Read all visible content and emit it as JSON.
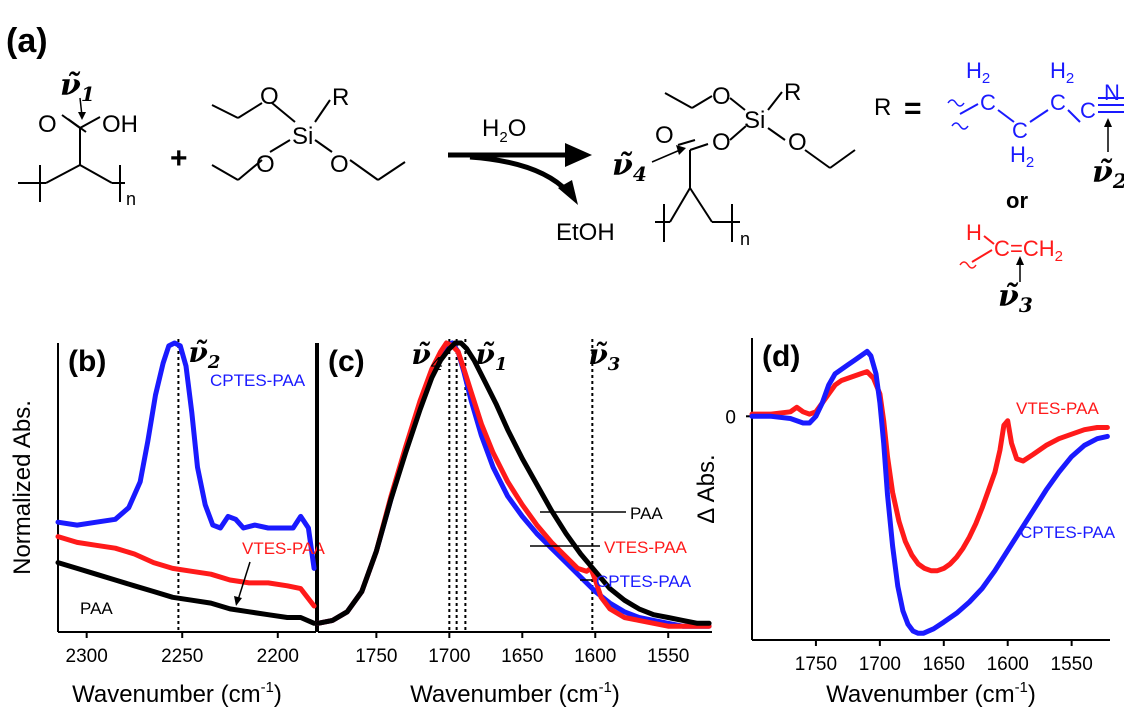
{
  "panel_a": {
    "label": "(a)",
    "reagent_oh": "OH",
    "reagent_o_carbonyl": "O",
    "subscript_n": "n",
    "plus": "+",
    "silane_si": "Si",
    "silane_r": "R",
    "silane_o": "O",
    "arrow_reagent": "H",
    "arrow_reagent_sub": "2",
    "arrow_reagent_tail": "O",
    "byproduct": "EtOH",
    "product_si": "Si",
    "product_r": "R",
    "product_o": "O",
    "r_def": "R",
    "equals": "=",
    "cptes_h2": "H",
    "cptes_h2_sub": "2",
    "cptes_c": "C",
    "cptes_n": "N",
    "or_label": "or",
    "vtes_h": "H",
    "vtes_c": "C",
    "vtes_ch2": "=CH",
    "vtes_ch2_sub": "2",
    "nu_symbol": "ν̃",
    "nu_1": "1",
    "nu_2": "2",
    "nu_3": "3",
    "nu_4": "4"
  },
  "colors": {
    "cptes": "#1a1aff",
    "vtes": "#ff1a1a",
    "paa": "#000000"
  },
  "chart_data": [
    {
      "type": "line",
      "panel": "(b)",
      "xlabel": "Wavenumber (cm",
      "xlabel_sup": "-1",
      "xlabel_tail": ")",
      "ylabel": "Normalized Abs.",
      "xlim": [
        2315,
        2180
      ],
      "ylim": [
        0,
        1
      ],
      "x_reversed": true,
      "xticks": [
        2300,
        2250,
        2200
      ],
      "marker": {
        "x": 2252,
        "label_sub": "2"
      },
      "series": [
        {
          "name": "CPTES-PAA",
          "color": "#1a1aff",
          "x": [
            2315,
            2305,
            2295,
            2285,
            2278,
            2272,
            2268,
            2264,
            2260,
            2257,
            2254,
            2251,
            2248,
            2245,
            2242,
            2238,
            2234,
            2230,
            2226,
            2222,
            2218,
            2212,
            2205,
            2198,
            2192,
            2188,
            2184,
            2181
          ],
          "y": [
            0.38,
            0.37,
            0.38,
            0.39,
            0.43,
            0.52,
            0.66,
            0.82,
            0.93,
            0.99,
            1.0,
            0.99,
            0.92,
            0.76,
            0.57,
            0.44,
            0.37,
            0.36,
            0.4,
            0.39,
            0.36,
            0.37,
            0.36,
            0.36,
            0.36,
            0.4,
            0.36,
            0.22
          ]
        },
        {
          "name": "VTES-PAA",
          "color": "#ff1a1a",
          "x": [
            2315,
            2305,
            2295,
            2285,
            2275,
            2265,
            2255,
            2245,
            2235,
            2225,
            2215,
            2205,
            2195,
            2188,
            2181
          ],
          "y": [
            0.33,
            0.31,
            0.3,
            0.29,
            0.27,
            0.24,
            0.22,
            0.21,
            0.2,
            0.18,
            0.17,
            0.17,
            0.16,
            0.15,
            0.09
          ]
        },
        {
          "name": "PAA",
          "color": "#000000",
          "x": [
            2315,
            2305,
            2295,
            2285,
            2275,
            2265,
            2255,
            2245,
            2235,
            2225,
            2215,
            2205,
            2195,
            2188,
            2181
          ],
          "y": [
            0.24,
            0.22,
            0.2,
            0.18,
            0.16,
            0.14,
            0.12,
            0.11,
            0.1,
            0.08,
            0.07,
            0.06,
            0.05,
            0.05,
            0.03
          ]
        }
      ]
    },
    {
      "type": "line",
      "panel": "(c)",
      "xlabel": "Wavenumber (cm",
      "xlabel_sup": "-1",
      "xlabel_tail": ")",
      "xlim": [
        1790,
        1520
      ],
      "ylim": [
        0,
        1
      ],
      "x_reversed": true,
      "xticks": [
        1750,
        1700,
        1650,
        1600,
        1550
      ],
      "markers": [
        {
          "x": 1700,
          "label_sub": "4"
        },
        {
          "x": 1695,
          "label_sub": ""
        },
        {
          "x": 1689,
          "label_sub": "1"
        },
        {
          "x": 1602,
          "label_sub": "3"
        }
      ],
      "series": [
        {
          "name": "CPTES-PAA",
          "color": "#1a1aff",
          "x": [
            1790,
            1780,
            1770,
            1760,
            1750,
            1740,
            1730,
            1720,
            1712,
            1706,
            1702,
            1698,
            1694,
            1690,
            1685,
            1678,
            1670,
            1660,
            1650,
            1640,
            1630,
            1620,
            1610,
            1600,
            1590,
            1580,
            1570,
            1560,
            1550,
            1540,
            1530,
            1522
          ],
          "y": [
            0.03,
            0.04,
            0.07,
            0.14,
            0.28,
            0.46,
            0.63,
            0.79,
            0.9,
            0.96,
            0.99,
            1.0,
            0.97,
            0.9,
            0.8,
            0.68,
            0.57,
            0.47,
            0.4,
            0.34,
            0.29,
            0.24,
            0.19,
            0.14,
            0.1,
            0.07,
            0.05,
            0.04,
            0.03,
            0.02,
            0.02,
            0.02
          ]
        },
        {
          "name": "VTES-PAA",
          "color": "#ff1a1a",
          "x": [
            1790,
            1780,
            1770,
            1760,
            1750,
            1740,
            1730,
            1720,
            1712,
            1706,
            1702,
            1698,
            1694,
            1690,
            1685,
            1678,
            1670,
            1660,
            1650,
            1640,
            1630,
            1620,
            1612,
            1606,
            1603,
            1600,
            1596,
            1590,
            1580,
            1570,
            1560,
            1550,
            1540,
            1530,
            1522
          ],
          "y": [
            0.03,
            0.04,
            0.07,
            0.14,
            0.28,
            0.47,
            0.64,
            0.8,
            0.91,
            0.97,
            1.0,
            0.99,
            0.97,
            0.91,
            0.83,
            0.72,
            0.62,
            0.52,
            0.44,
            0.37,
            0.31,
            0.26,
            0.22,
            0.21,
            0.22,
            0.18,
            0.12,
            0.08,
            0.05,
            0.04,
            0.03,
            0.02,
            0.02,
            0.02,
            0.02
          ]
        },
        {
          "name": "PAA",
          "color": "#000000",
          "x": [
            1790,
            1780,
            1770,
            1760,
            1750,
            1740,
            1730,
            1720,
            1712,
            1706,
            1700,
            1696,
            1692,
            1688,
            1683,
            1676,
            1668,
            1660,
            1650,
            1640,
            1630,
            1620,
            1610,
            1600,
            1590,
            1580,
            1570,
            1560,
            1550,
            1540,
            1530,
            1522
          ],
          "y": [
            0.03,
            0.04,
            0.07,
            0.14,
            0.28,
            0.46,
            0.62,
            0.77,
            0.88,
            0.94,
            0.98,
            1.0,
            1.0,
            0.98,
            0.94,
            0.87,
            0.79,
            0.7,
            0.6,
            0.51,
            0.42,
            0.34,
            0.27,
            0.21,
            0.15,
            0.11,
            0.08,
            0.06,
            0.05,
            0.04,
            0.03,
            0.03
          ]
        }
      ],
      "annotations": [
        {
          "text": "PAA",
          "color": "#000000"
        },
        {
          "text": "VTES-PAA",
          "color": "#ff1a1a"
        },
        {
          "text": "CPTES-PAA",
          "color": "#1a1aff"
        }
      ]
    },
    {
      "type": "line",
      "panel": "(d)",
      "xlabel": "Wavenumber (cm",
      "xlabel_sup": "-1",
      "xlabel_tail": ")",
      "ylabel": "Δ Abs.",
      "xlim": [
        1800,
        1520
      ],
      "ylim": [
        -1.0,
        0.35
      ],
      "x_reversed": true,
      "xticks": [
        1750,
        1700,
        1650,
        1600,
        1550
      ],
      "yticks": [
        0
      ],
      "series": [
        {
          "name": "VTES-PAA",
          "color": "#ff1a1a",
          "x": [
            1800,
            1785,
            1770,
            1765,
            1760,
            1755,
            1750,
            1745,
            1740,
            1735,
            1730,
            1725,
            1720,
            1715,
            1710,
            1705,
            1700,
            1697,
            1694,
            1690,
            1685,
            1680,
            1675,
            1670,
            1665,
            1660,
            1655,
            1650,
            1645,
            1640,
            1635,
            1630,
            1625,
            1620,
            1615,
            1610,
            1606,
            1603,
            1600,
            1597,
            1593,
            1588,
            1580,
            1570,
            1560,
            1550,
            1540,
            1530,
            1522
          ],
          "y": [
            0.01,
            0.01,
            0.02,
            0.04,
            0.02,
            0.01,
            0.02,
            0.06,
            0.1,
            0.14,
            0.16,
            0.17,
            0.18,
            0.19,
            0.2,
            0.17,
            0.1,
            -0.02,
            -0.18,
            -0.34,
            -0.47,
            -0.56,
            -0.62,
            -0.66,
            -0.68,
            -0.69,
            -0.69,
            -0.68,
            -0.66,
            -0.63,
            -0.59,
            -0.54,
            -0.48,
            -0.41,
            -0.33,
            -0.25,
            -0.15,
            -0.04,
            -0.02,
            -0.12,
            -0.19,
            -0.2,
            -0.17,
            -0.13,
            -0.1,
            -0.08,
            -0.06,
            -0.05,
            -0.05
          ]
        },
        {
          "name": "CPTES-PAA",
          "color": "#1a1aff",
          "x": [
            1800,
            1785,
            1770,
            1760,
            1755,
            1750,
            1745,
            1740,
            1735,
            1730,
            1725,
            1720,
            1715,
            1710,
            1707,
            1703,
            1700,
            1697,
            1694,
            1690,
            1686,
            1682,
            1678,
            1674,
            1670,
            1666,
            1662,
            1658,
            1650,
            1640,
            1630,
            1620,
            1610,
            1600,
            1590,
            1580,
            1570,
            1560,
            1550,
            1540,
            1530,
            1522
          ],
          "y": [
            0.0,
            0.0,
            -0.01,
            -0.03,
            -0.03,
            0.0,
            0.06,
            0.14,
            0.19,
            0.21,
            0.23,
            0.25,
            0.27,
            0.29,
            0.27,
            0.19,
            0.06,
            -0.12,
            -0.35,
            -0.58,
            -0.76,
            -0.87,
            -0.93,
            -0.96,
            -0.97,
            -0.97,
            -0.96,
            -0.95,
            -0.92,
            -0.88,
            -0.83,
            -0.77,
            -0.69,
            -0.6,
            -0.51,
            -0.42,
            -0.33,
            -0.25,
            -0.18,
            -0.13,
            -0.1,
            -0.09
          ]
        }
      ],
      "annotations": [
        {
          "text": "VTES-PAA",
          "color": "#ff1a1a"
        },
        {
          "text": "CPTES-PAA",
          "color": "#1a1aff"
        }
      ]
    }
  ]
}
